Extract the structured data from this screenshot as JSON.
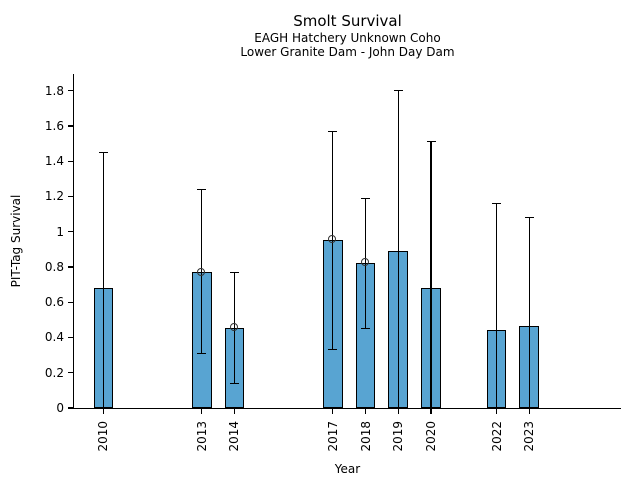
{
  "chart_data": {
    "type": "bar",
    "title": "Smolt Survival",
    "subtitle1": "EAGH Hatchery Unknown Coho",
    "subtitle2": "Lower Granite Dam - John Day Dam",
    "xlabel": "Year",
    "ylabel": "PIT-Tag Survival",
    "categories": [
      "2010",
      "2013",
      "2014",
      "2017",
      "2018",
      "2019",
      "2020",
      "2022",
      "2023"
    ],
    "values": [
      0.68,
      0.77,
      0.455,
      0.955,
      0.825,
      0.89,
      0.68,
      0.445,
      0.465
    ],
    "error_low": [
      0,
      0.31,
      0.14,
      0.33,
      0.45,
      0,
      0,
      0,
      0
    ],
    "error_high": [
      1.45,
      1.24,
      0.77,
      1.57,
      1.19,
      1.8,
      1.51,
      1.16,
      1.08
    ],
    "point_marker": [
      false,
      true,
      true,
      true,
      true,
      false,
      false,
      false,
      false
    ],
    "yticks": [
      0,
      0.2,
      0.4,
      0.6,
      0.8,
      1,
      1.2,
      1.4,
      1.6,
      1.8
    ],
    "ylim": [
      0,
      1.895
    ],
    "xlim": [
      2009.1,
      2025.8
    ],
    "bar_width_years": 0.6,
    "bar_color": "#58A4D2",
    "bar_edge_color": "#000000",
    "error_color": "#000000",
    "marker_edge_color": "#333333",
    "grid": false,
    "legend": null
  }
}
